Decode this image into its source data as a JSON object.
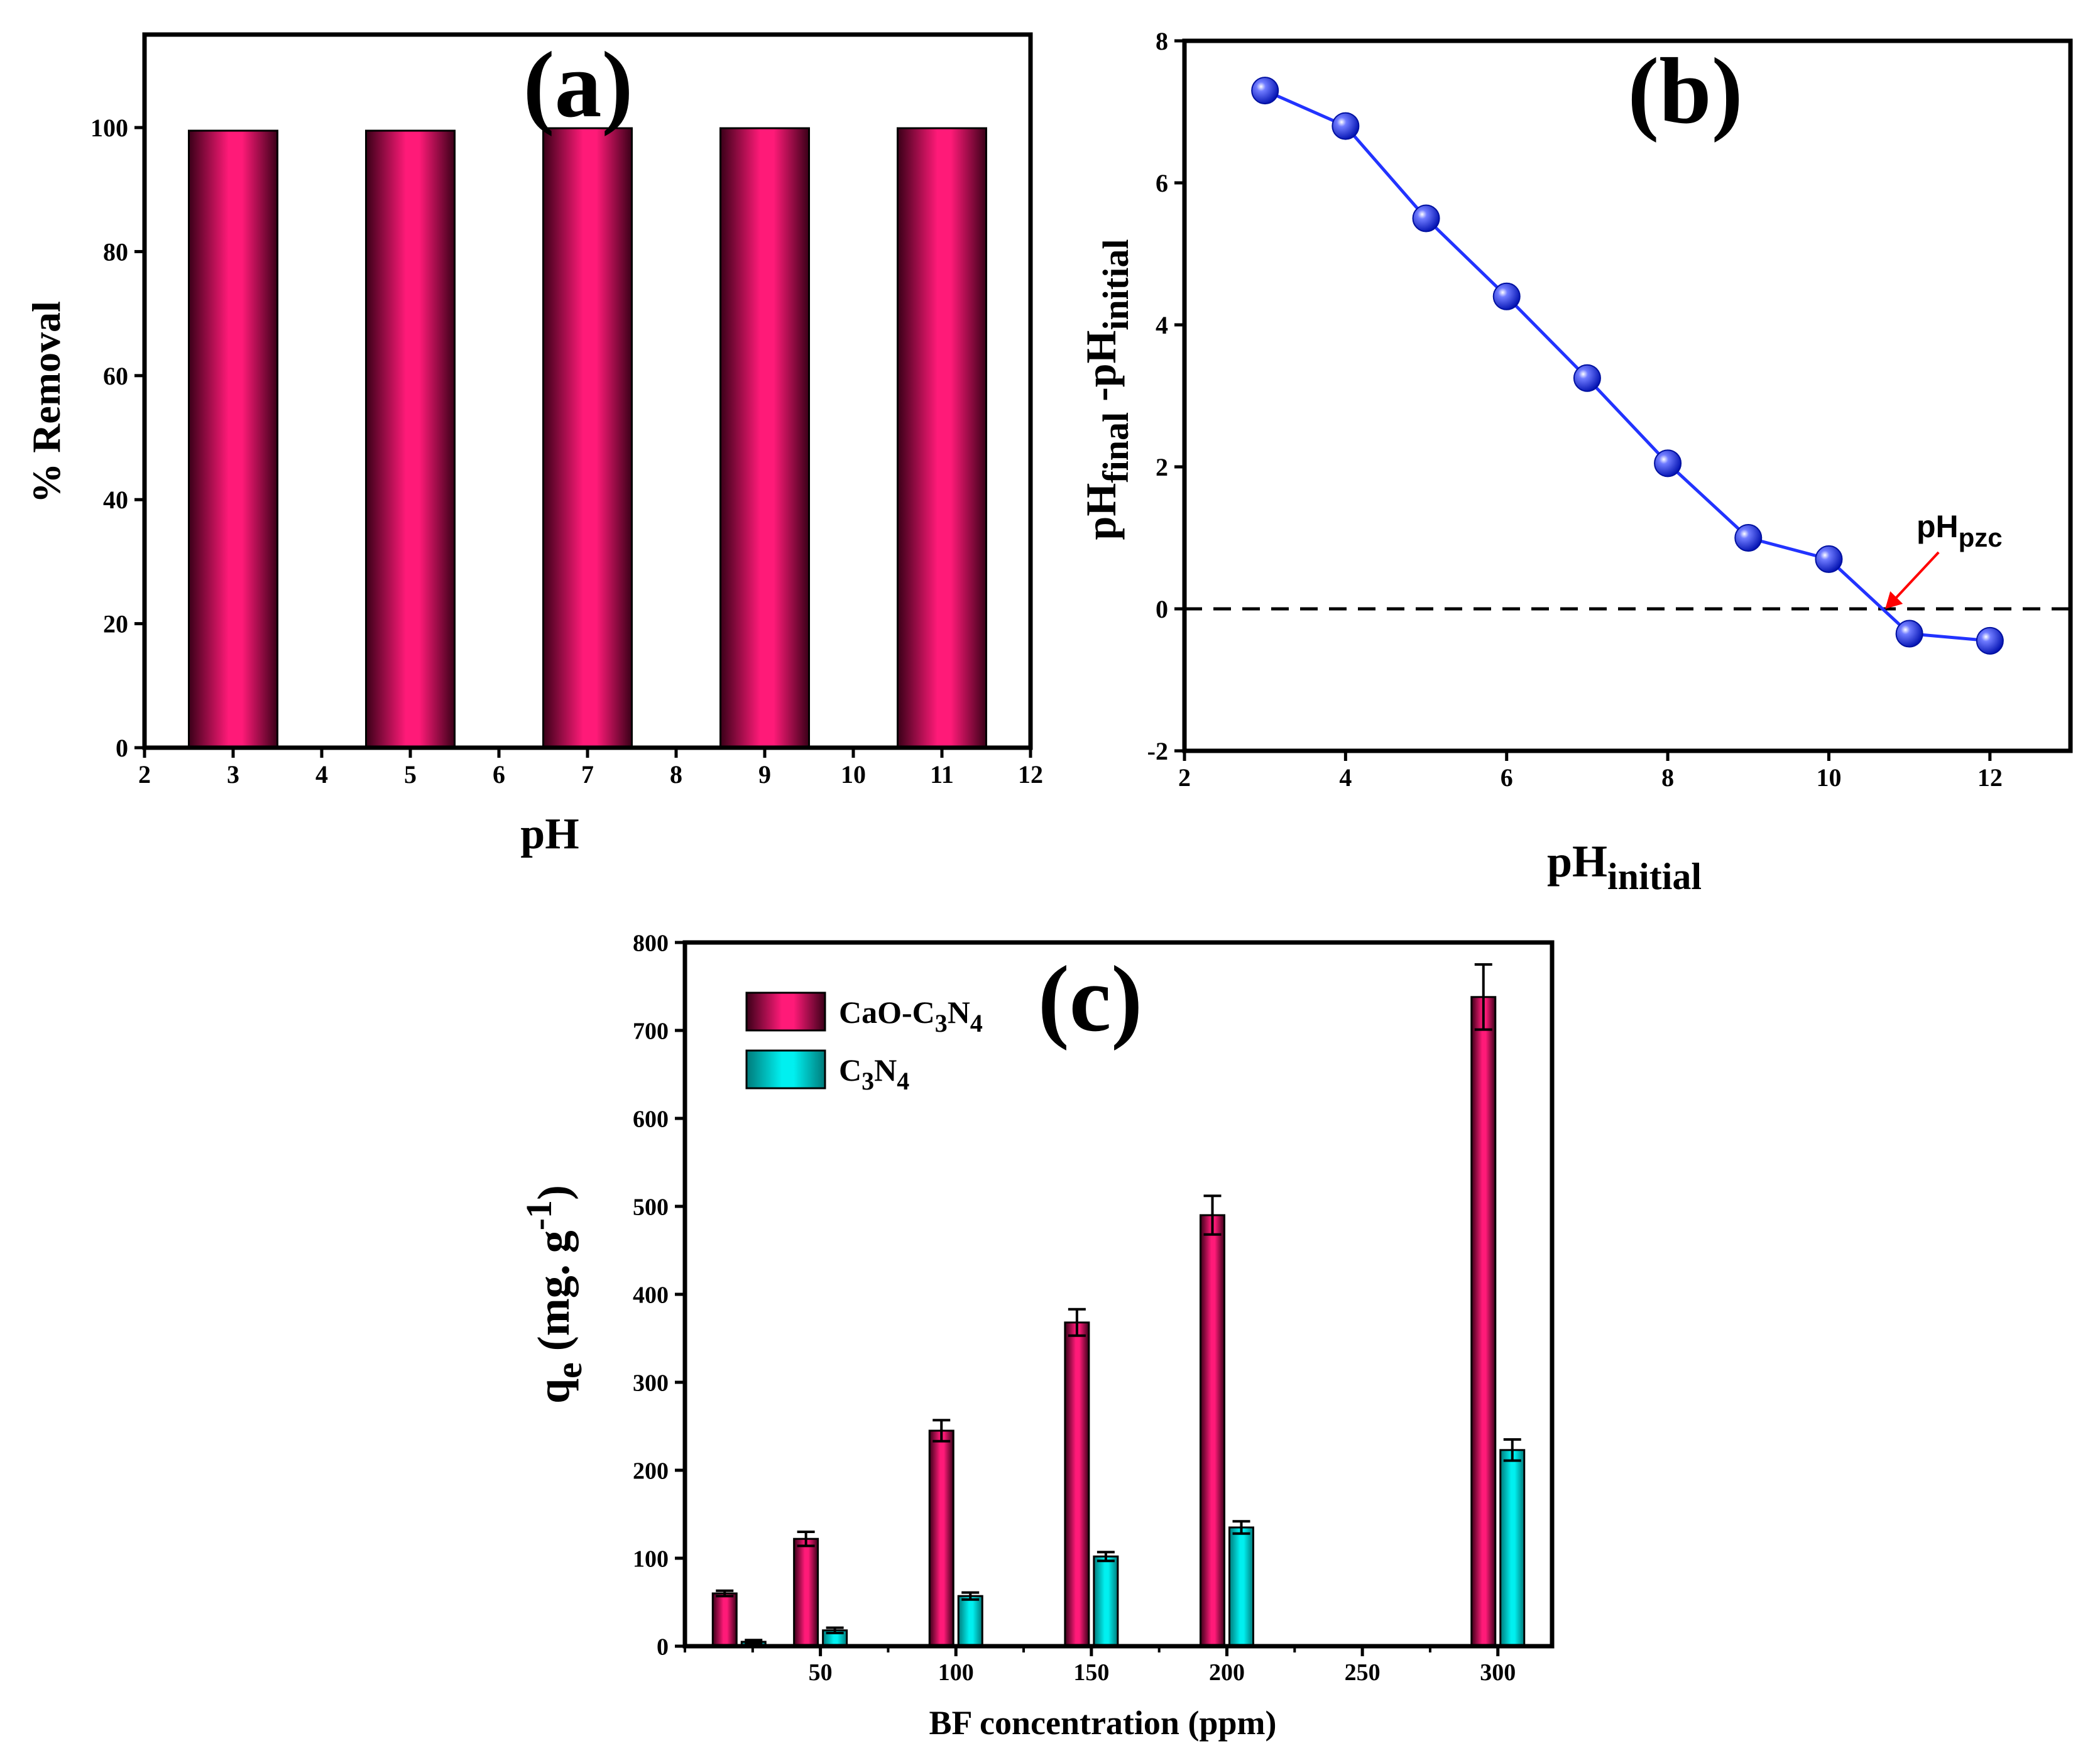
{
  "colors": {
    "bar_magenta": "#E0106A",
    "bar_dark": "#3a0018",
    "bar_cyan": "#00D6D6",
    "line_blue": "#2233ff",
    "point_blue": "#2a3bff",
    "arrow_red": "#ff0000",
    "axis": "#000000"
  },
  "chart_data": [
    {
      "id": "a",
      "type": "bar",
      "panel_label": "(a)",
      "xlabel": "pH",
      "ylabel": "% Removal",
      "xlim": [
        2,
        12
      ],
      "ylim": [
        0,
        115
      ],
      "xticks": [
        2,
        3,
        4,
        5,
        6,
        7,
        8,
        9,
        10,
        11,
        12
      ],
      "yticks": [
        0,
        20,
        40,
        60,
        80,
        100
      ],
      "x": [
        3,
        5,
        7,
        9,
        11
      ],
      "values": [
        99.5,
        99.5,
        99.9,
        99.9,
        99.9
      ]
    },
    {
      "id": "b",
      "type": "line",
      "panel_label": "(b)",
      "xlabel_main": "pH",
      "xlabel_sub": "initial",
      "ylabel_parts": [
        "pH",
        "final",
        " -pH",
        "initial"
      ],
      "xlim": [
        2,
        13
      ],
      "ylim": [
        -2,
        8
      ],
      "xticks": [
        2,
        4,
        6,
        8,
        10,
        12
      ],
      "yticks": [
        -2,
        0,
        2,
        4,
        6,
        8
      ],
      "x": [
        3,
        4,
        5,
        6,
        7,
        8,
        9,
        10,
        11,
        12
      ],
      "y": [
        7.3,
        6.8,
        5.5,
        4.4,
        3.25,
        2.05,
        1.0,
        0.7,
        -0.35,
        -0.45
      ],
      "reference_line_y": 0,
      "annotation_main": "pH",
      "annotation_sub": "pzc",
      "annotation_target": [
        10.7,
        0
      ]
    },
    {
      "id": "c",
      "type": "bar",
      "panel_label": "(c)",
      "xlabel": "BF concentration (ppm)",
      "ylabel_main": "q",
      "ylabel_sub": "e",
      "ylabel_rest": " (mg. g",
      "ylabel_sup": "-1",
      "ylabel_close": ")",
      "xlim": [
        0,
        320
      ],
      "ylim": [
        0,
        800
      ],
      "xticks": [
        50,
        100,
        150,
        200,
        250,
        300
      ],
      "xminor": [
        0,
        25,
        75,
        125,
        175,
        225,
        275
      ],
      "yticks": [
        0,
        100,
        200,
        300,
        400,
        500,
        600,
        700,
        800
      ],
      "x": [
        20,
        50,
        100,
        150,
        200,
        300
      ],
      "series": [
        {
          "name_parts": [
            "CaO-C",
            "3",
            "N",
            "4"
          ],
          "values": [
            60,
            122,
            245,
            368,
            490,
            738
          ],
          "errors": [
            3,
            8,
            12,
            15,
            22,
            37
          ]
        },
        {
          "name_parts": [
            "C",
            "3",
            "N",
            "4"
          ],
          "values": [
            5,
            18,
            57,
            102,
            135,
            223
          ],
          "errors": [
            2,
            3,
            4,
            5,
            7,
            12
          ]
        }
      ]
    }
  ]
}
